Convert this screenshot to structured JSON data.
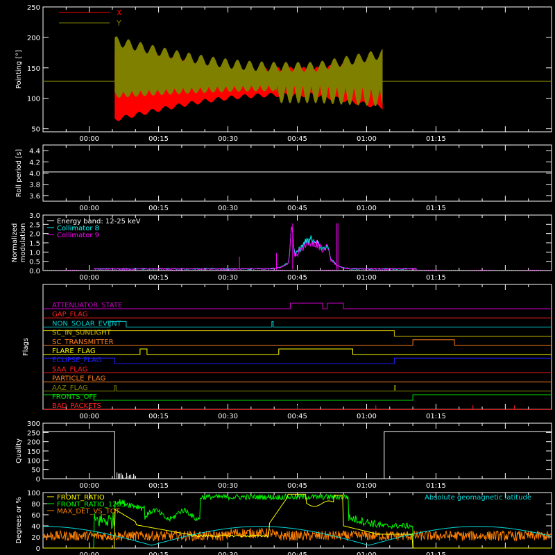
{
  "chart_data": [
    {
      "type": "line",
      "ylabel": "Pointing [°]",
      "ylim": [
        45,
        250
      ],
      "yticks": [
        50,
        100,
        150,
        200,
        250
      ],
      "series": [
        {
          "name": "X",
          "color": "#ff0000"
        },
        {
          "name": "Y",
          "color": "#808000"
        }
      ]
    },
    {
      "type": "line",
      "ylabel": "Roll period [s]",
      "ylim": [
        3.5,
        4.5
      ],
      "yticks": [
        3.6,
        3.8,
        4.0,
        4.2,
        4.4
      ],
      "series": [
        {
          "value": 4.02,
          "color": "#ffffff"
        }
      ]
    },
    {
      "type": "line",
      "ylabel": "Normalized modulation",
      "ylim": [
        0,
        3.0
      ],
      "yticks": [
        0.0,
        0.5,
        1.0,
        1.5,
        2.0,
        2.5,
        3.0
      ],
      "legend": [
        {
          "text": "Energy band: 12-25 keV",
          "color": "#ffffff"
        },
        {
          "text": "Collimator 8",
          "color": "#00ffff"
        },
        {
          "text": "Collimator 9",
          "color": "#ff00ff"
        }
      ]
    },
    {
      "type": "table",
      "ylabel": "Flags",
      "flags": [
        {
          "name": "ATTENUATOR_STATE",
          "color": "#cc00cc",
          "on": [
            [
              43.5,
              50.5
            ],
            [
              51.5,
              55.0
            ]
          ]
        },
        {
          "name": "GAP_FLAG",
          "color": "#ff2020",
          "on": []
        },
        {
          "name": "NON_SOLAR_EVENT",
          "color": "#00cccc",
          "on": [
            [
              4.5,
              8.0
            ],
            [
              39.5,
              39.8
            ]
          ]
        },
        {
          "name": "SC_IN_SUNLIGHT",
          "color": "#d4c000",
          "on": [
            [
              -10,
              66.0
            ]
          ]
        },
        {
          "name": "SC_TRANSMITTER",
          "color": "#ff8020",
          "on": [
            [
              70.0,
              79.0
            ]
          ]
        },
        {
          "name": "FLARE_FLAG",
          "color": "#ffff00",
          "on": [
            [
              11.0,
              12.5
            ],
            [
              41.0,
              57.0
            ]
          ]
        },
        {
          "name": "ECLIPSE_FLAG",
          "color": "#2020ff",
          "on": [
            [
              -10,
              5.5
            ],
            [
              66.0,
              100
            ]
          ]
        },
        {
          "name": "SAA_FLAG",
          "color": "#ff2020",
          "on": []
        },
        {
          "name": "PARTICLE_FLAG",
          "color": "#ff8020",
          "on": []
        },
        {
          "name": "AAZ_FLAG",
          "color": "#808000",
          "on": [
            [
              5.5,
              5.8
            ],
            [
              66.0,
              66.3
            ]
          ]
        },
        {
          "name": "FRONTS_OFF",
          "color": "#00dd00",
          "on": [
            [
              -10,
              1.0
            ],
            [
              70.0,
              100
            ]
          ]
        },
        {
          "name": "BAD_PACKETS",
          "color": "#ff2020",
          "spikes": [
            45.0,
            62.0,
            83.0,
            92.0
          ]
        }
      ]
    },
    {
      "type": "line",
      "ylabel": "Quality",
      "ylim": [
        0,
        300
      ],
      "yticks": [
        0,
        50,
        100,
        150,
        200,
        250,
        300
      ],
      "series": [
        {
          "color": "#ffffff"
        }
      ]
    },
    {
      "type": "line",
      "ylabel": "Degrees or %",
      "ylim": [
        0,
        100
      ],
      "yticks": [
        0,
        20,
        40,
        60,
        80,
        100
      ],
      "legend": [
        {
          "text": "FRONT_RATIO",
          "color": "#ffff00"
        },
        {
          "text": "FRONT_RATIO_1225",
          "color": "#00ff00"
        },
        {
          "text": "MAX_DET_VS_TOT",
          "color": "#ff8000"
        }
      ],
      "legend_right": {
        "text": "Absolute geomagnetic latitude",
        "color": "#00dddd"
      }
    }
  ],
  "time_axis": {
    "xlim_minutes": [
      -10,
      100
    ],
    "tick_labels": [
      "00:00",
      "00:15",
      "00:30",
      "00:45",
      "01:00",
      "01:15"
    ]
  }
}
